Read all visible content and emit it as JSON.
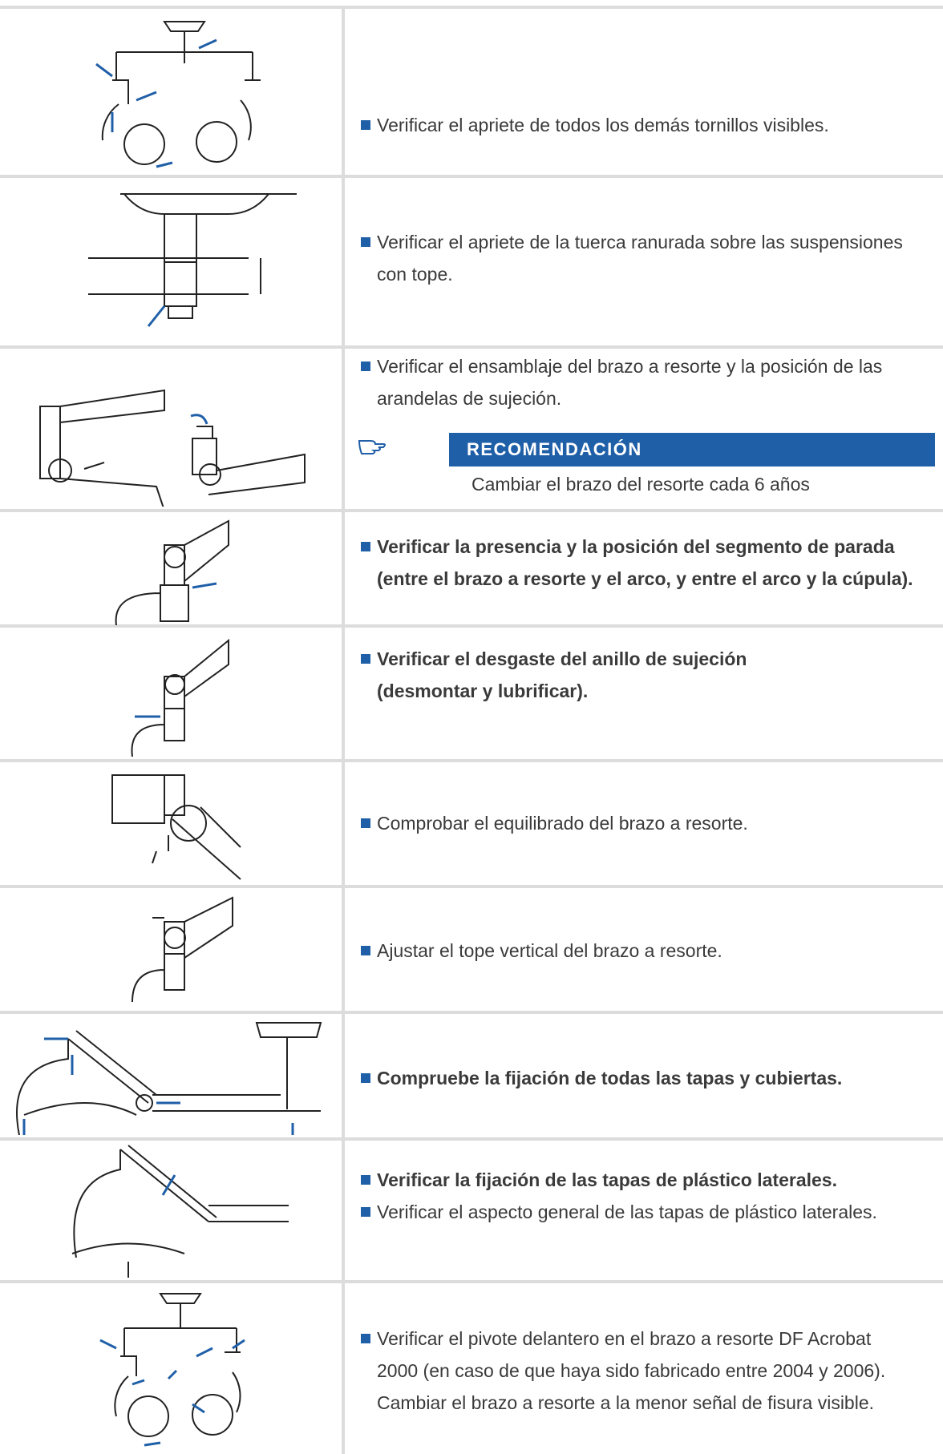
{
  "rows": [
    {
      "items": [
        "Verificar el apriete de todos los demás tornillos visibles."
      ]
    },
    {
      "items": [
        "Verificar el apriete de la tuerca ranurada sobre las suspensiones con tope."
      ]
    },
    {
      "items": [
        "Verificar el ensamblaje del brazo a resorte y la posición de las arandelas de sujeción."
      ],
      "recommendation": {
        "title": "RECOMENDACIÓN",
        "text": "Cambiar el brazo del resorte cada 6 años"
      }
    },
    {
      "items": [
        "Verificar la presencia y la posición del segmento de parada (entre el brazo a resorte y el arco, y entre el arco y la cúpula)."
      ]
    },
    {
      "items": [
        "Verificar el desgaste del anillo de sujeción (desmontar y lubrificar)."
      ]
    },
    {
      "items": [
        "Comprobar el equilibrado del brazo a resorte."
      ]
    },
    {
      "items": [
        "Ajustar el tope vertical del brazo a resorte."
      ]
    },
    {
      "items": [
        "Compruebe la fijación de todas las tapas y cubiertas."
      ]
    },
    {
      "items": [
        "Verificar la fijación de las tapas de plástico laterales.",
        "Verificar el aspecto general de las tapas de plástico laterales."
      ]
    },
    {
      "items": [
        "Verificar el pivote delantero en el brazo a resorte DF Acrobat 2000 (en caso de que haya sido fabricado entre 2004 y 2006). Cambiar el brazo a resorte a la menor señal de fisura visible."
      ]
    }
  ]
}
